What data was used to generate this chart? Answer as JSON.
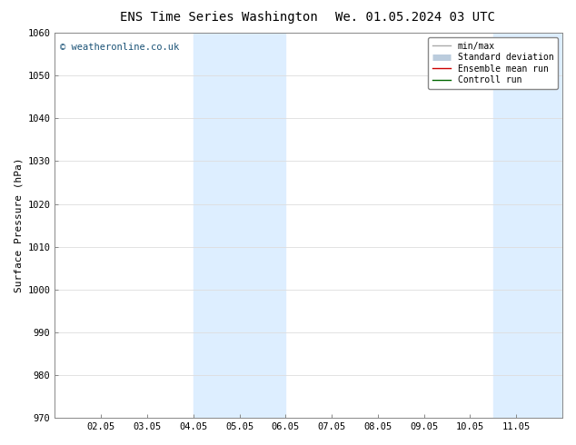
{
  "title_left": "ENS Time Series Washington",
  "title_right": "We. 01.05.2024 03 UTC",
  "ylabel": "Surface Pressure (hPa)",
  "ylim": [
    970,
    1060
  ],
  "yticks": [
    970,
    980,
    990,
    1000,
    1010,
    1020,
    1030,
    1040,
    1050,
    1060
  ],
  "x_labels": [
    "02.05",
    "03.05",
    "04.05",
    "05.05",
    "06.05",
    "07.05",
    "08.05",
    "09.05",
    "10.05",
    "11.05"
  ],
  "x_positions": [
    1,
    2,
    3,
    4,
    5,
    6,
    7,
    8,
    9,
    10
  ],
  "xlim": [
    0,
    11
  ],
  "shaded_regions": [
    {
      "xmin": 3,
      "xmax": 5,
      "color": "#ddeeff"
    },
    {
      "xmin": 9.5,
      "xmax": 11,
      "color": "#ddeeff"
    }
  ],
  "watermark": "© weatheronline.co.uk",
  "watermark_color": "#1a5276",
  "legend_entries": [
    {
      "label": "min/max",
      "color": "#aaaaaa",
      "lw": 1.0
    },
    {
      "label": "Standard deviation",
      "color": "#bbccdd",
      "lw": 5
    },
    {
      "label": "Ensemble mean run",
      "color": "#cc0000",
      "lw": 1.0
    },
    {
      "label": "Controll run",
      "color": "#006600",
      "lw": 1.0
    }
  ],
  "background_color": "#ffffff",
  "grid_color": "#dddddd",
  "title_fontsize": 10,
  "axis_fontsize": 8,
  "tick_fontsize": 7.5,
  "figure_width": 6.34,
  "figure_height": 4.9,
  "dpi": 100
}
